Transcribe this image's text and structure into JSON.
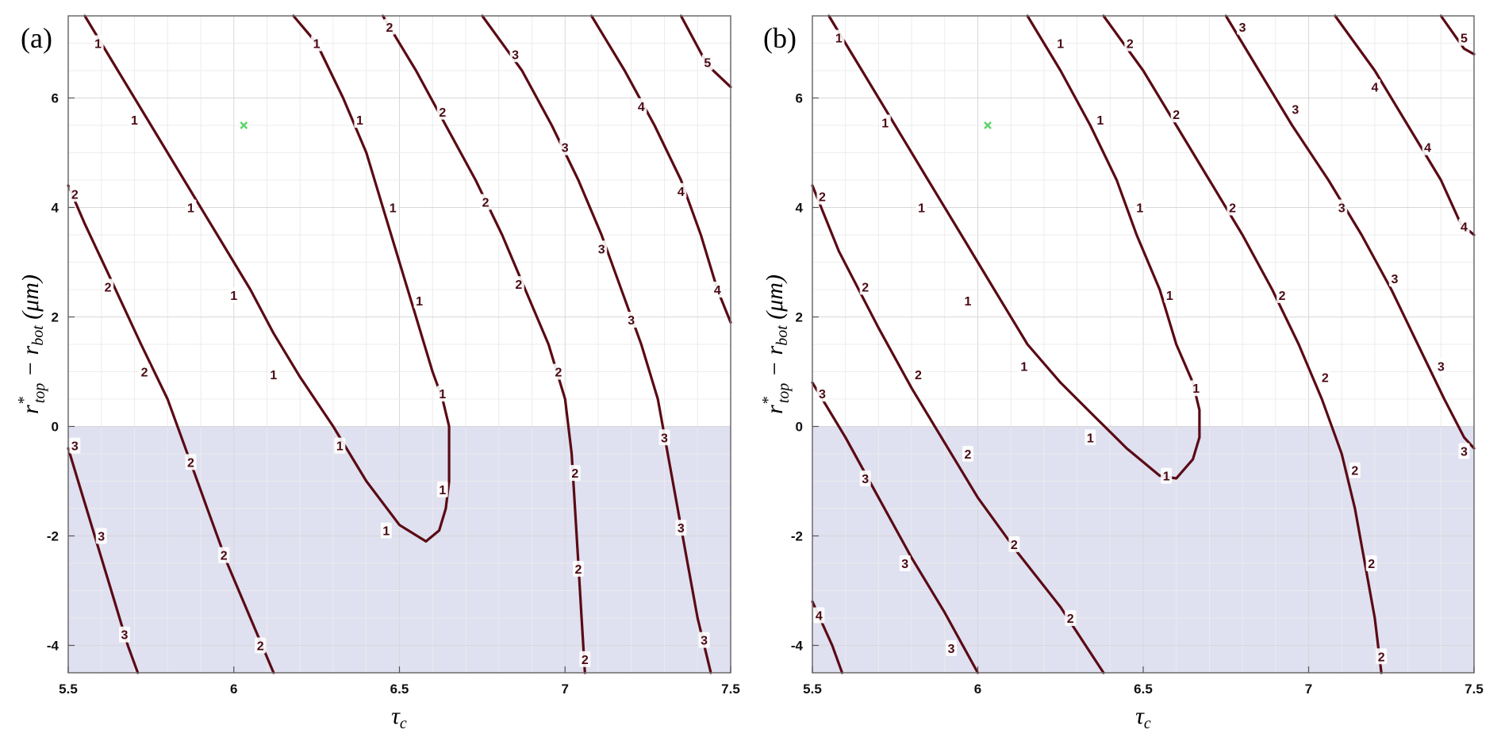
{
  "chart_data": [
    {
      "type": "contour",
      "panel_label": "(a)",
      "xlabel": "τc",
      "ylabel": "r*top − rbot (μm)",
      "xlim": [
        5.5,
        7.5
      ],
      "ylim": [
        -4.5,
        7.5
      ],
      "xticks": [
        "5.5",
        "6",
        "6.5",
        "7",
        "7.5"
      ],
      "yticks": [
        "-4",
        "-2",
        "0",
        "2",
        "4",
        "6"
      ],
      "grid": true,
      "shaded_region": {
        "y_from": -4.5,
        "y_to": 0,
        "color": "#dfe0f0"
      },
      "marker": {
        "x": 6.03,
        "y": 5.5,
        "symbol": "x",
        "color": "#5fd36a"
      },
      "line_color": "#5a0a14",
      "contours": [
        {
          "level": "1",
          "points": [
            [
              5.55,
              7.5
            ],
            [
              5.65,
              6.5
            ],
            [
              5.75,
              5.5
            ],
            [
              5.85,
              4.5
            ],
            [
              5.95,
              3.5
            ],
            [
              6.05,
              2.5
            ],
            [
              6.12,
              1.7
            ],
            [
              6.2,
              0.9
            ],
            [
              6.3,
              0
            ],
            [
              6.4,
              -1
            ],
            [
              6.5,
              -1.8
            ],
            [
              6.58,
              -2.1
            ],
            [
              6.62,
              -1.9
            ],
            [
              6.64,
              -1.5
            ],
            [
              6.65,
              -1
            ],
            [
              6.65,
              -0.5
            ],
            [
              6.65,
              0
            ],
            [
              6.63,
              0.5
            ],
            [
              6.6,
              1
            ],
            [
              6.55,
              2
            ],
            [
              6.5,
              3
            ],
            [
              6.45,
              4
            ],
            [
              6.4,
              5
            ],
            [
              6.33,
              6
            ],
            [
              6.25,
              7
            ],
            [
              6.18,
              7.5
            ]
          ],
          "labels": [
            [
              5.59,
              7.0
            ],
            [
              5.7,
              5.6
            ],
            [
              5.87,
              4.0
            ],
            [
              6.0,
              2.4
            ],
            [
              6.12,
              0.95
            ],
            [
              6.32,
              -0.35
            ],
            [
              6.46,
              -1.9
            ],
            [
              6.63,
              -1.15
            ],
            [
              6.63,
              0.6
            ],
            [
              6.56,
              2.3
            ],
            [
              6.48,
              4.0
            ],
            [
              6.38,
              5.6
            ],
            [
              6.25,
              7.0
            ]
          ]
        },
        {
          "level": "2",
          "points": [
            [
              5.5,
              4.4
            ],
            [
              5.55,
              3.7
            ],
            [
              5.62,
              2.8
            ],
            [
              5.72,
              1.5
            ],
            [
              5.8,
              0.5
            ],
            [
              5.86,
              -0.5
            ],
            [
              5.92,
              -1.5
            ],
            [
              5.98,
              -2.5
            ],
            [
              6.05,
              -3.5
            ],
            [
              6.12,
              -4.5
            ]
          ],
          "labels": [
            [
              5.52,
              4.25
            ],
            [
              5.62,
              2.55
            ],
            [
              5.73,
              1.0
            ],
            [
              5.87,
              -0.65
            ],
            [
              5.97,
              -2.35
            ],
            [
              6.08,
              -4.0
            ]
          ]
        },
        {
          "level": "2",
          "points": [
            [
              6.45,
              7.5
            ],
            [
              6.55,
              6.5
            ],
            [
              6.64,
              5.5
            ],
            [
              6.73,
              4.5
            ],
            [
              6.81,
              3.5
            ],
            [
              6.88,
              2.5
            ],
            [
              6.95,
              1.5
            ],
            [
              7.0,
              0.5
            ],
            [
              7.02,
              -0.5
            ],
            [
              7.03,
              -1.5
            ],
            [
              7.04,
              -2.5
            ],
            [
              7.05,
              -3.5
            ],
            [
              7.06,
              -4.5
            ]
          ],
          "labels": [
            [
              6.47,
              7.3
            ],
            [
              6.63,
              5.75
            ],
            [
              6.76,
              4.1
            ],
            [
              6.86,
              2.6
            ],
            [
              6.98,
              1.0
            ],
            [
              7.03,
              -0.85
            ],
            [
              7.04,
              -2.6
            ],
            [
              7.06,
              -4.25
            ]
          ]
        },
        {
          "level": "3",
          "points": [
            [
              5.5,
              -0.4
            ],
            [
              5.53,
              -1
            ],
            [
              5.58,
              -2
            ],
            [
              5.63,
              -3
            ],
            [
              5.68,
              -4
            ],
            [
              5.71,
              -4.5
            ]
          ],
          "labels": [
            [
              5.52,
              -0.35
            ],
            [
              5.6,
              -2.0
            ],
            [
              5.67,
              -3.8
            ]
          ]
        },
        {
          "level": "3",
          "points": [
            [
              6.75,
              7.5
            ],
            [
              6.87,
              6.5
            ],
            [
              6.96,
              5.5
            ],
            [
              7.04,
              4.5
            ],
            [
              7.11,
              3.5
            ],
            [
              7.17,
              2.5
            ],
            [
              7.23,
              1.5
            ],
            [
              7.28,
              0.5
            ],
            [
              7.31,
              -0.5
            ],
            [
              7.34,
              -1.5
            ],
            [
              7.37,
              -2.5
            ],
            [
              7.4,
              -3.5
            ],
            [
              7.44,
              -4.5
            ]
          ],
          "labels": [
            [
              6.85,
              6.8
            ],
            [
              7.0,
              5.1
            ],
            [
              7.11,
              3.25
            ],
            [
              7.2,
              1.95
            ],
            [
              7.3,
              -0.2
            ],
            [
              7.35,
              -1.85
            ],
            [
              7.42,
              -3.9
            ]
          ]
        },
        {
          "level": "4",
          "points": [
            [
              7.08,
              7.5
            ],
            [
              7.18,
              6.5
            ],
            [
              7.27,
              5.5
            ],
            [
              7.35,
              4.5
            ],
            [
              7.41,
              3.5
            ],
            [
              7.46,
              2.5
            ],
            [
              7.5,
              1.9
            ]
          ],
          "labels": [
            [
              7.23,
              5.85
            ],
            [
              7.35,
              4.3
            ],
            [
              7.46,
              2.5
            ]
          ]
        },
        {
          "level": "5",
          "points": [
            [
              7.35,
              7.5
            ],
            [
              7.43,
              6.6
            ],
            [
              7.5,
              6.2
            ]
          ],
          "labels": [
            [
              7.43,
              6.65
            ]
          ]
        }
      ]
    },
    {
      "type": "contour",
      "panel_label": "(b)",
      "xlabel": "τc",
      "ylabel": "r*top − rbot (μm)",
      "xlim": [
        5.5,
        7.5
      ],
      "ylim": [
        -4.5,
        7.5
      ],
      "xticks": [
        "5.5",
        "6",
        "6.5",
        "7",
        "7.5"
      ],
      "yticks": [
        "-4",
        "-2",
        "0",
        "2",
        "4",
        "6"
      ],
      "grid": true,
      "shaded_region": {
        "y_from": -4.5,
        "y_to": 0,
        "color": "#dfe0f0"
      },
      "marker": {
        "x": 6.03,
        "y": 5.5,
        "symbol": "x",
        "color": "#5fd36a"
      },
      "line_color": "#5a0a14",
      "contours": [
        {
          "level": "1",
          "points": [
            [
              5.55,
              7.5
            ],
            [
              5.65,
              6.5
            ],
            [
              5.75,
              5.5
            ],
            [
              5.85,
              4.5
            ],
            [
              5.95,
              3.5
            ],
            [
              6.05,
              2.5
            ],
            [
              6.15,
              1.5
            ],
            [
              6.25,
              0.8
            ],
            [
              6.35,
              0.2
            ],
            [
              6.45,
              -0.4
            ],
            [
              6.55,
              -0.9
            ],
            [
              6.6,
              -0.95
            ],
            [
              6.65,
              -0.6
            ],
            [
              6.67,
              -0.2
            ],
            [
              6.67,
              0.3
            ],
            [
              6.65,
              0.8
            ],
            [
              6.6,
              1.5
            ],
            [
              6.55,
              2.5
            ],
            [
              6.48,
              3.5
            ],
            [
              6.42,
              4.5
            ],
            [
              6.34,
              5.5
            ],
            [
              6.25,
              6.5
            ],
            [
              6.15,
              7.5
            ]
          ],
          "labels": [
            [
              5.58,
              7.1
            ],
            [
              5.72,
              5.55
            ],
            [
              5.83,
              4.0
            ],
            [
              5.97,
              2.3
            ],
            [
              6.14,
              1.1
            ],
            [
              6.34,
              -0.2
            ],
            [
              6.57,
              -0.9
            ],
            [
              6.66,
              0.7
            ],
            [
              6.58,
              2.4
            ],
            [
              6.49,
              4.0
            ],
            [
              6.37,
              5.6
            ],
            [
              6.25,
              7.0
            ]
          ]
        },
        {
          "level": "2",
          "points": [
            [
              5.5,
              4.4
            ],
            [
              5.58,
              3.2
            ],
            [
              5.7,
              1.8
            ],
            [
              5.8,
              0.7
            ],
            [
              5.9,
              -0.3
            ],
            [
              6.0,
              -1.3
            ],
            [
              6.12,
              -2.3
            ],
            [
              6.25,
              -3.3
            ],
            [
              6.38,
              -4.5
            ]
          ],
          "labels": [
            [
              5.53,
              4.2
            ],
            [
              5.66,
              2.55
            ],
            [
              5.82,
              0.95
            ],
            [
              5.97,
              -0.5
            ],
            [
              6.11,
              -2.15
            ],
            [
              6.28,
              -3.5
            ]
          ]
        },
        {
          "level": "2",
          "points": [
            [
              6.38,
              7.5
            ],
            [
              6.5,
              6.5
            ],
            [
              6.6,
              5.5
            ],
            [
              6.7,
              4.5
            ],
            [
              6.8,
              3.5
            ],
            [
              6.89,
              2.5
            ],
            [
              6.97,
              1.5
            ],
            [
              7.04,
              0.5
            ],
            [
              7.1,
              -0.5
            ],
            [
              7.14,
              -1.5
            ],
            [
              7.17,
              -2.5
            ],
            [
              7.2,
              -3.5
            ],
            [
              7.22,
              -4.5
            ]
          ],
          "labels": [
            [
              6.46,
              7.0
            ],
            [
              6.6,
              5.7
            ],
            [
              6.77,
              4.0
            ],
            [
              6.92,
              2.4
            ],
            [
              7.05,
              0.9
            ],
            [
              7.14,
              -0.8
            ],
            [
              7.19,
              -2.5
            ],
            [
              7.22,
              -4.2
            ]
          ]
        },
        {
          "level": "3",
          "points": [
            [
              5.5,
              0.8
            ],
            [
              5.6,
              -0.2
            ],
            [
              5.7,
              -1.3
            ],
            [
              5.8,
              -2.4
            ],
            [
              5.9,
              -3.4
            ],
            [
              6.0,
              -4.5
            ]
          ],
          "labels": [
            [
              5.53,
              0.6
            ],
            [
              5.66,
              -0.95
            ],
            [
              5.78,
              -2.5
            ],
            [
              5.92,
              -4.05
            ]
          ]
        },
        {
          "level": "3",
          "points": [
            [
              6.75,
              7.5
            ],
            [
              6.85,
              6.5
            ],
            [
              6.95,
              5.5
            ],
            [
              7.06,
              4.5
            ],
            [
              7.16,
              3.5
            ],
            [
              7.25,
              2.5
            ],
            [
              7.33,
              1.5
            ],
            [
              7.41,
              0.5
            ],
            [
              7.47,
              -0.2
            ],
            [
              7.5,
              -0.4
            ]
          ],
          "labels": [
            [
              6.8,
              7.3
            ],
            [
              6.96,
              5.8
            ],
            [
              7.1,
              4.0
            ],
            [
              7.26,
              2.7
            ],
            [
              7.4,
              1.1
            ],
            [
              7.47,
              -0.45
            ]
          ]
        },
        {
          "level": "4",
          "points": [
            [
              5.5,
              -3.2
            ],
            [
              5.56,
              -4.0
            ],
            [
              5.59,
              -4.5
            ]
          ],
          "labels": [
            [
              5.52,
              -3.45
            ]
          ]
        },
        {
          "level": "4",
          "points": [
            [
              7.08,
              7.5
            ],
            [
              7.2,
              6.5
            ],
            [
              7.3,
              5.5
            ],
            [
              7.4,
              4.5
            ],
            [
              7.46,
              3.7
            ],
            [
              7.5,
              3.5
            ]
          ],
          "labels": [
            [
              7.2,
              6.2
            ],
            [
              7.36,
              5.1
            ],
            [
              7.47,
              3.65
            ]
          ]
        },
        {
          "level": "5",
          "points": [
            [
              7.4,
              7.5
            ],
            [
              7.47,
              6.9
            ],
            [
              7.5,
              6.8
            ]
          ],
          "labels": [
            [
              7.47,
              7.1
            ]
          ]
        }
      ]
    }
  ]
}
